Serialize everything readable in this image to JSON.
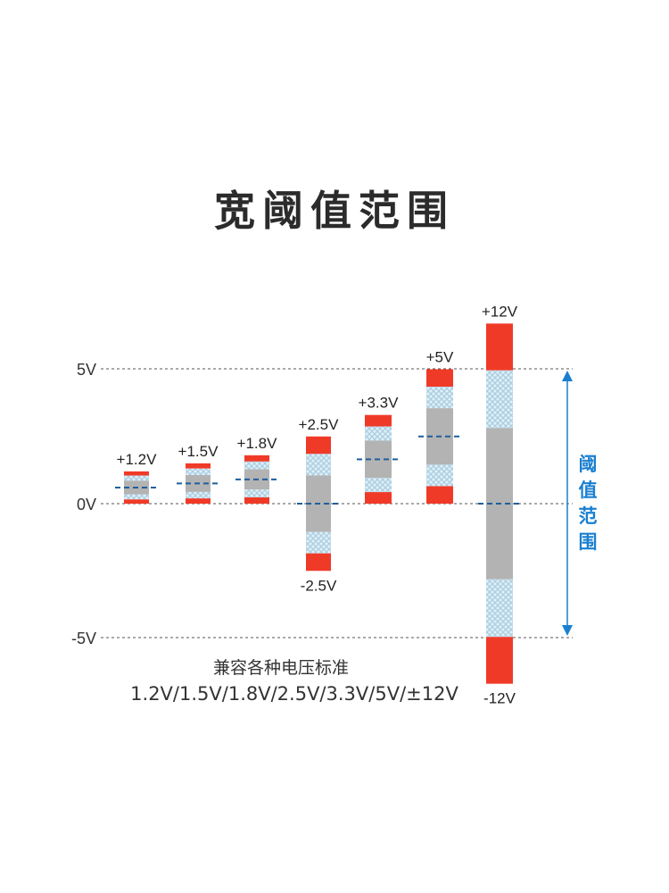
{
  "title": "宽阈值范围",
  "axis": {
    "top": "5V",
    "zero": "0V",
    "bottom": "-5V",
    "ylim": [
      -5,
      5
    ]
  },
  "standards": [
    {
      "label": "+1.2V",
      "high": 1.2,
      "low": 0
    },
    {
      "label": "+1.5V",
      "high": 1.5,
      "low": 0
    },
    {
      "label": "+1.8V",
      "high": 1.8,
      "low": 0
    },
    {
      "label": "+2.5V",
      "low_label": "-2.5V",
      "high": 2.5,
      "low": -2.5
    },
    {
      "label": "+3.3V",
      "high": 3.3,
      "low": 0
    },
    {
      "label": "+5V",
      "high": 5,
      "low": 0
    },
    {
      "label": "+12V",
      "low_label": "-12V",
      "high": 12,
      "low": -12
    }
  ],
  "range_label": "阈值范围",
  "caption_line1": "兼容各种电压标准",
  "caption_line2": "1.2V/1.5V/1.8V/2.5V/3.3V/5V/±12V",
  "colors": {
    "red": "#f03a28",
    "gray": "#b3b3b3",
    "hatch": "#a9cde0",
    "dash": "#1f5f9c",
    "accent": "#1a7fd0"
  }
}
